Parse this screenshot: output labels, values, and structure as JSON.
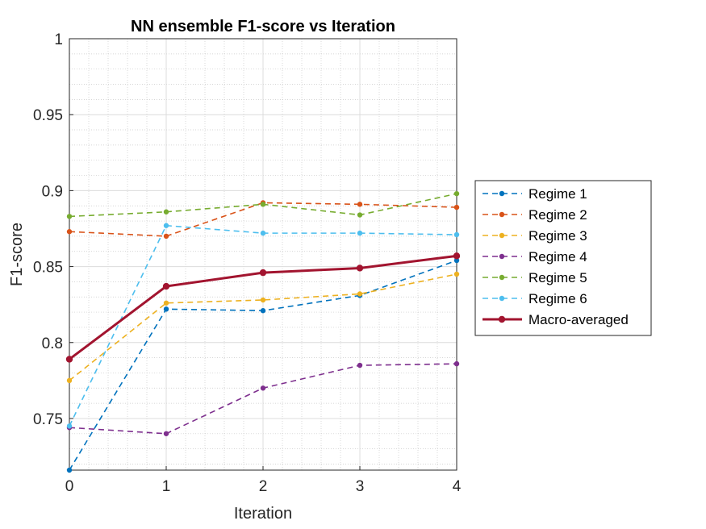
{
  "chart_data": {
    "type": "line",
    "title": "NN ensemble F1-score vs Iteration",
    "xlabel": "Iteration",
    "ylabel": "F1-score",
    "xlim": [
      0,
      4
    ],
    "ylim": [
      0.716,
      1.0
    ],
    "x": [
      0,
      1,
      2,
      3,
      4
    ],
    "xticks": [
      "0",
      "1",
      "2",
      "3",
      "4"
    ],
    "yticks": [
      0.75,
      0.8,
      0.85,
      0.9,
      0.95,
      1
    ],
    "ytick_labels": [
      "0.75",
      "0.8",
      "0.85",
      "0.9",
      "0.95",
      "1"
    ],
    "grid": true,
    "minor_grid": true,
    "legend_position": "right-outside",
    "series": [
      {
        "name": "Regime 1",
        "values": [
          0.716,
          0.822,
          0.821,
          0.831,
          0.854
        ],
        "color": "#0072BD",
        "style": "dashed"
      },
      {
        "name": "Regime 2",
        "values": [
          0.873,
          0.87,
          0.892,
          0.891,
          0.889
        ],
        "color": "#D95319",
        "style": "dashed"
      },
      {
        "name": "Regime 3",
        "values": [
          0.775,
          0.826,
          0.828,
          0.832,
          0.845
        ],
        "color": "#EDB120",
        "style": "dashed"
      },
      {
        "name": "Regime 4",
        "values": [
          0.744,
          0.74,
          0.77,
          0.785,
          0.786
        ],
        "color": "#7E2F8E",
        "style": "dashed"
      },
      {
        "name": "Regime 5",
        "values": [
          0.883,
          0.886,
          0.891,
          0.884,
          0.898
        ],
        "color": "#77AC30",
        "style": "dashed"
      },
      {
        "name": "Regime 6",
        "values": [
          0.745,
          0.877,
          0.872,
          0.872,
          0.871
        ],
        "color": "#4DBEEE",
        "style": "dashed"
      },
      {
        "name": "Macro-averaged",
        "values": [
          0.789,
          0.837,
          0.846,
          0.849,
          0.857
        ],
        "color": "#A2142F",
        "style": "solid"
      }
    ]
  }
}
